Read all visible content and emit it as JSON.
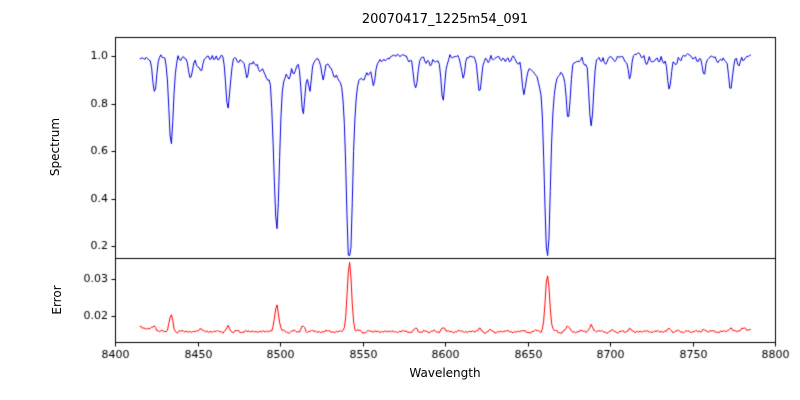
{
  "title": "20070417_1225m54_091",
  "xlabel": "Wavelength",
  "background": "#ffffff",
  "axis_color": "#000000",
  "xticks": [
    {
      "value": 8400,
      "label": "8400"
    },
    {
      "value": 8450,
      "label": "8450"
    },
    {
      "value": 8500,
      "label": "8500"
    },
    {
      "value": 8550,
      "label": "8550"
    },
    {
      "value": 8600,
      "label": "8600"
    },
    {
      "value": 8650,
      "label": "8650"
    },
    {
      "value": 8700,
      "label": "8700"
    },
    {
      "value": 8750,
      "label": "8750"
    },
    {
      "value": 8800,
      "label": "8800"
    }
  ],
  "chart_data": [
    {
      "type": "line",
      "name": "spectrum",
      "ylabel": "Spectrum",
      "color": "#0000dd",
      "xlim": [
        8400,
        8800
      ],
      "ylim": [
        0.15,
        1.08
      ],
      "yticks": [
        {
          "value": 0.2,
          "label": "0.2"
        },
        {
          "value": 0.4,
          "label": "0.4"
        },
        {
          "value": 0.6,
          "label": "0.6"
        },
        {
          "value": 0.8,
          "label": "0.8"
        },
        {
          "value": 1.0,
          "label": "1.0"
        }
      ],
      "x_start": 8415,
      "x_end": 8786,
      "step": 0.8,
      "continuum": 1.002,
      "noise": {
        "seed": 13,
        "smooth_n": 4,
        "smooth_amp": 0.004,
        "dip_n": 9,
        "dip_amp": 0.01
      },
      "absorption_lines": [
        {
          "wavelength": 8424.0,
          "depth": 0.16,
          "sigma": 1.2
        },
        {
          "wavelength": 8434.0,
          "depth": 0.37,
          "sigma": 1.3
        },
        {
          "wavelength": 8445.5,
          "depth": 0.08,
          "sigma": 1.0
        },
        {
          "wavelength": 8452.0,
          "depth": 0.06,
          "sigma": 0.9
        },
        {
          "wavelength": 8468.5,
          "depth": 0.21,
          "sigma": 1.3
        },
        {
          "wavelength": 8480.0,
          "depth": 0.07,
          "sigma": 0.9
        },
        {
          "wavelength": 8498.0,
          "depth": 0.63,
          "sigma": 1.6,
          "wing": true
        },
        {
          "wavelength": 8514.1,
          "depth": 0.21,
          "sigma": 1.2
        },
        {
          "wavelength": 8518.0,
          "depth": 0.13,
          "sigma": 1.0
        },
        {
          "wavelength": 8526.0,
          "depth": 0.07,
          "sigma": 0.9
        },
        {
          "wavelength": 8542.1,
          "depth": 0.77,
          "sigma": 1.8,
          "wing": true
        },
        {
          "wavelength": 8556.8,
          "depth": 0.09,
          "sigma": 1.0
        },
        {
          "wavelength": 8582.3,
          "depth": 0.13,
          "sigma": 1.1
        },
        {
          "wavelength": 8598.8,
          "depth": 0.17,
          "sigma": 1.2
        },
        {
          "wavelength": 8611.0,
          "depth": 0.09,
          "sigma": 1.0
        },
        {
          "wavelength": 8621.0,
          "depth": 0.14,
          "sigma": 1.1
        },
        {
          "wavelength": 8648.0,
          "depth": 0.11,
          "sigma": 1.1
        },
        {
          "wavelength": 8662.1,
          "depth": 0.74,
          "sigma": 1.7,
          "wing": true
        },
        {
          "wavelength": 8674.7,
          "depth": 0.23,
          "sigma": 1.2
        },
        {
          "wavelength": 8688.6,
          "depth": 0.29,
          "sigma": 1.3
        },
        {
          "wavelength": 8712.0,
          "depth": 0.09,
          "sigma": 1.0
        },
        {
          "wavelength": 8736.0,
          "depth": 0.11,
          "sigma": 1.1
        },
        {
          "wavelength": 8757.0,
          "depth": 0.08,
          "sigma": 1.0
        },
        {
          "wavelength": 8773.0,
          "depth": 0.13,
          "sigma": 1.1
        }
      ]
    },
    {
      "type": "line",
      "name": "error",
      "ylabel": "Error",
      "color": "#ff0000",
      "xlim": [
        8400,
        8800
      ],
      "ylim": [
        0.013,
        0.0355
      ],
      "yticks": [
        {
          "value": 0.02,
          "label": "0.02"
        },
        {
          "value": 0.03,
          "label": "0.03"
        }
      ],
      "baseline": 0.0158,
      "noise": {
        "seed": 7,
        "n": 7,
        "amp": 0.00012
      },
      "edge_bumps": [
        {
          "wavelength": 8415,
          "height": 0.0012,
          "sigma": 6
        },
        {
          "wavelength": 8786,
          "height": 0.0008,
          "sigma": 6
        }
      ],
      "peaks": [
        {
          "wavelength": 8424.0,
          "height": 0.0009,
          "sigma": 1.0
        },
        {
          "wavelength": 8434.0,
          "height": 0.0042,
          "sigma": 1.1
        },
        {
          "wavelength": 8452.0,
          "height": 0.0008,
          "sigma": 0.9
        },
        {
          "wavelength": 8468.5,
          "height": 0.0012,
          "sigma": 1.0
        },
        {
          "wavelength": 8498.0,
          "height": 0.0072,
          "sigma": 1.2
        },
        {
          "wavelength": 8514.1,
          "height": 0.0015,
          "sigma": 1.0
        },
        {
          "wavelength": 8542.1,
          "height": 0.0185,
          "sigma": 1.3
        },
        {
          "wavelength": 8582.3,
          "height": 0.0007,
          "sigma": 0.9
        },
        {
          "wavelength": 8598.8,
          "height": 0.001,
          "sigma": 1.0
        },
        {
          "wavelength": 8621.0,
          "height": 0.0007,
          "sigma": 0.9
        },
        {
          "wavelength": 8662.1,
          "height": 0.015,
          "sigma": 1.3
        },
        {
          "wavelength": 8674.7,
          "height": 0.0013,
          "sigma": 1.0
        },
        {
          "wavelength": 8688.6,
          "height": 0.0018,
          "sigma": 1.0
        },
        {
          "wavelength": 8712.0,
          "height": 0.0006,
          "sigma": 0.9
        },
        {
          "wavelength": 8736.0,
          "height": 0.0008,
          "sigma": 0.9
        },
        {
          "wavelength": 8757.0,
          "height": 0.0006,
          "sigma": 0.9
        },
        {
          "wavelength": 8773.0,
          "height": 0.0008,
          "sigma": 0.9
        }
      ]
    }
  ]
}
